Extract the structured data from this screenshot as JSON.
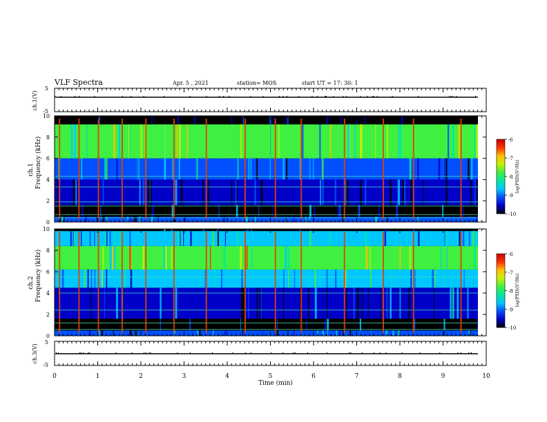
{
  "header": {
    "title": "VLF Spectra",
    "date": "Apr. 5 , 2021",
    "station": "station= MOS",
    "start": "start UT =  17: 30: 1"
  },
  "axes": {
    "time_label": "Time (min)",
    "time_ticks": [
      "0",
      "1",
      "2",
      "3",
      "4",
      "5",
      "6",
      "7",
      "8",
      "9",
      "10"
    ],
    "ch1v_label": "ch.1(V)",
    "ch3v_label": "ch.3(V)",
    "volt_top": "5",
    "volt_bottom": "-5",
    "ch1_label": "ch.1",
    "ch2_label": "ch.2",
    "freq_label": "Frequency (kHz)",
    "freq_ticks": [
      "0",
      "2",
      "4",
      "6",
      "8",
      "10"
    ]
  },
  "colorbar": {
    "label": "log(PSD)(V²/Hz)",
    "ticks": [
      "-6",
      "-7",
      "-8",
      "-9",
      "-10"
    ],
    "colors": [
      "#000000",
      "#0000c8",
      "#0050ff",
      "#00c8ff",
      "#00e8a0",
      "#40f040",
      "#c8f000",
      "#ffc000",
      "#ff3000",
      "#c80000"
    ]
  },
  "chart_data": [
    {
      "type": "line",
      "title": "",
      "ylabel": "ch.1(V)",
      "xlabel": "",
      "xlim": [
        0,
        10
      ],
      "ylim": [
        -5,
        5
      ],
      "series": [
        {
          "x": [
            0,
            10
          ],
          "y": [
            0,
            0
          ]
        }
      ]
    },
    {
      "type": "heatmap",
      "title": "",
      "ylabel": "ch.1 Frequency (kHz)",
      "xlabel": "",
      "xlim": [
        0,
        10
      ],
      "ylim": [
        0,
        10
      ],
      "colorbar_range": [
        -10,
        -6
      ],
      "colorbar_label": "log(PSD)(V²/Hz)",
      "bands": [
        {
          "f_min": 0.0,
          "f_max": 0.5,
          "level": -9.3
        },
        {
          "f_min": 0.5,
          "f_max": 1.6,
          "level": -9.8
        },
        {
          "f_min": 1.6,
          "f_max": 4.0,
          "level": -9.6
        },
        {
          "f_min": 4.0,
          "f_max": 6.0,
          "level": -9.0
        },
        {
          "f_min": 6.0,
          "f_max": 9.2,
          "level": -8.0
        },
        {
          "f_min": 9.2,
          "f_max": 10.0,
          "level": -10.0
        }
      ],
      "lines_khz": [
        0.4,
        0.7,
        1.5,
        1.9,
        3.3,
        4.3
      ],
      "spike_times_min": [
        0.1,
        0.55,
        1.0,
        1.55,
        2.1,
        2.75,
        3.5,
        4.4,
        5.1,
        5.7,
        6.7,
        7.6,
        8.3,
        9.4
      ]
    },
    {
      "type": "heatmap",
      "title": "",
      "ylabel": "ch.2 Frequency (kHz)",
      "xlabel": "",
      "xlim": [
        0,
        10
      ],
      "ylim": [
        0,
        10
      ],
      "colorbar_range": [
        -10,
        -6
      ],
      "colorbar_label": "log(PSD)(V²/Hz)",
      "bands": [
        {
          "f_min": 0.0,
          "f_max": 0.5,
          "level": -9.3
        },
        {
          "f_min": 0.5,
          "f_max": 1.6,
          "level": -9.8
        },
        {
          "f_min": 1.6,
          "f_max": 4.5,
          "level": -9.5
        },
        {
          "f_min": 4.5,
          "f_max": 6.2,
          "level": -8.6
        },
        {
          "f_min": 6.2,
          "f_max": 8.4,
          "level": -7.6
        },
        {
          "f_min": 8.4,
          "f_max": 9.8,
          "level": -8.8
        },
        {
          "f_min": 9.8,
          "f_max": 10.0,
          "level": -9.8
        }
      ],
      "lines_khz": [
        0.6,
        1.2,
        2.4,
        4.0,
        5.5
      ],
      "spike_times_min": [
        0.1,
        0.55,
        1.0,
        1.55,
        2.1,
        2.75,
        3.5,
        4.4,
        5.1,
        5.7,
        6.7,
        7.6,
        8.3,
        9.4
      ]
    },
    {
      "type": "line",
      "title": "",
      "ylabel": "ch.3(V)",
      "xlabel": "Time (min)",
      "xlim": [
        0,
        10
      ],
      "ylim": [
        -5,
        5
      ],
      "series": [
        {
          "x": [
            0,
            10
          ],
          "y": [
            0,
            0
          ]
        }
      ]
    }
  ]
}
